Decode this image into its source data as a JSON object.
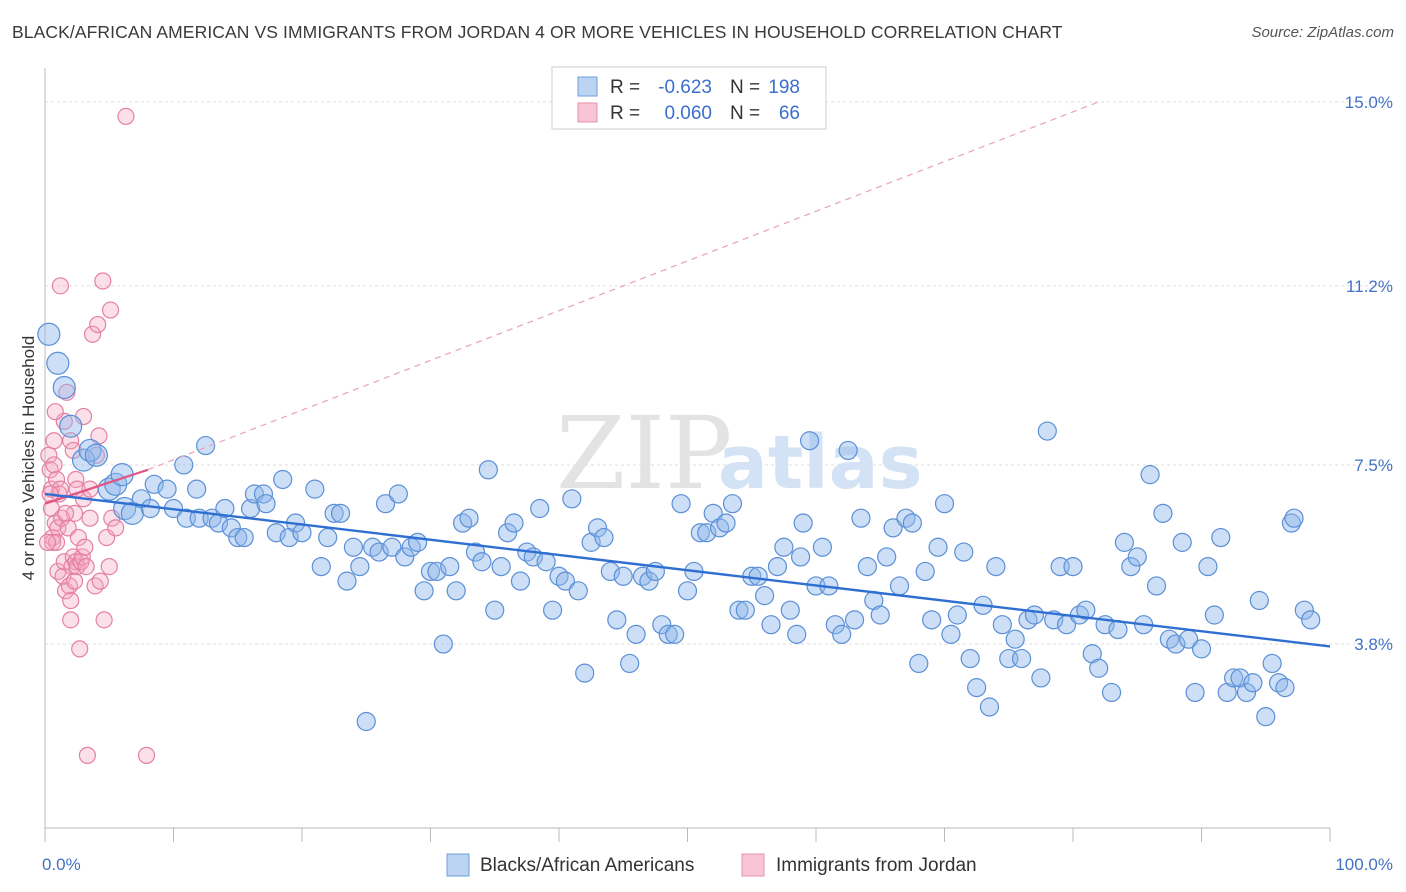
{
  "title": "BLACK/AFRICAN AMERICAN VS IMMIGRANTS FROM JORDAN 4 OR MORE VEHICLES IN HOUSEHOLD CORRELATION CHART",
  "source": "Source: ZipAtlas.com",
  "watermark": {
    "zip": "ZIP",
    "atlas": "atlas"
  },
  "legend": {
    "r_label": "R =",
    "n_label": "N =",
    "rows": [
      {
        "r": "-0.623",
        "n": "198",
        "color": "#8fb8ea"
      },
      {
        "r": "0.060",
        "n": "66",
        "color": "#f4a6c0"
      }
    ]
  },
  "bottom_legend": [
    "Blacks/African Americans",
    "Immigrants from Jordan"
  ],
  "chart_data": {
    "type": "scatter",
    "title": "BLACK/AFRICAN AMERICAN VS IMMIGRANTS FROM JORDAN 4 OR MORE VEHICLES IN HOUSEHOLD CORRELATION CHART",
    "xlabel": "",
    "ylabel": "4 or more Vehicles in Household",
    "xlim": [
      0,
      100
    ],
    "ylim": [
      0,
      15.7
    ],
    "x_tick_labels": [
      "0.0%",
      "100.0%"
    ],
    "y_ticks": [
      3.8,
      7.5,
      11.2,
      15.0
    ],
    "y_tick_labels": [
      "3.8%",
      "7.5%",
      "11.2%",
      "15.0%"
    ],
    "series": [
      {
        "name": "Blacks/African Americans",
        "color": "#8fb8ea",
        "stroke": "#5b8fd6",
        "trend": {
          "x": [
            0,
            100
          ],
          "y": [
            6.9,
            3.75
          ],
          "color": "#2f6fd1"
        },
        "points": [
          [
            0.3,
            10.2
          ],
          [
            1,
            9.6
          ],
          [
            1.5,
            9.1
          ],
          [
            2,
            8.3
          ],
          [
            3,
            7.6
          ],
          [
            3.5,
            7.8
          ],
          [
            4,
            7.7
          ],
          [
            5,
            7.0
          ],
          [
            5.5,
            7.1
          ],
          [
            6,
            7.3
          ],
          [
            6.2,
            6.6
          ],
          [
            6.8,
            6.5
          ],
          [
            7.5,
            6.8
          ],
          [
            8.2,
            6.6
          ],
          [
            8.5,
            7.1
          ],
          [
            9.5,
            7.0
          ],
          [
            10,
            6.6
          ],
          [
            10.8,
            7.5
          ],
          [
            11,
            6.4
          ],
          [
            11.8,
            7.0
          ],
          [
            12,
            6.4
          ],
          [
            12.5,
            7.9
          ],
          [
            13,
            6.4
          ],
          [
            13.5,
            6.3
          ],
          [
            14,
            6.6
          ],
          [
            14.5,
            6.2
          ],
          [
            15,
            6.0
          ],
          [
            15.5,
            6.0
          ],
          [
            16,
            6.6
          ],
          [
            16.3,
            6.9
          ],
          [
            17,
            6.9
          ],
          [
            17.2,
            6.7
          ],
          [
            18,
            6.1
          ],
          [
            18.5,
            7.2
          ],
          [
            19,
            6.0
          ],
          [
            19.5,
            6.3
          ],
          [
            20,
            6.1
          ],
          [
            21,
            7.0
          ],
          [
            21.5,
            5.4
          ],
          [
            22,
            6.0
          ],
          [
            22.5,
            6.5
          ],
          [
            23,
            6.5
          ],
          [
            23.5,
            5.1
          ],
          [
            24,
            5.8
          ],
          [
            24.5,
            5.4
          ],
          [
            25,
            2.2
          ],
          [
            25.5,
            5.8
          ],
          [
            26,
            5.7
          ],
          [
            26.5,
            6.7
          ],
          [
            27,
            5.8
          ],
          [
            27.5,
            6.9
          ],
          [
            28,
            5.6
          ],
          [
            28.5,
            5.8
          ],
          [
            29,
            5.9
          ],
          [
            29.5,
            4.9
          ],
          [
            30,
            5.3
          ],
          [
            30.5,
            5.3
          ],
          [
            31,
            3.8
          ],
          [
            31.5,
            5.4
          ],
          [
            32,
            4.9
          ],
          [
            32.5,
            6.3
          ],
          [
            33,
            6.4
          ],
          [
            33.5,
            5.7
          ],
          [
            34,
            5.5
          ],
          [
            34.5,
            7.4
          ],
          [
            35,
            4.5
          ],
          [
            35.5,
            5.4
          ],
          [
            36,
            6.1
          ],
          [
            36.5,
            6.3
          ],
          [
            37,
            5.1
          ],
          [
            37.5,
            5.7
          ],
          [
            38,
            5.6
          ],
          [
            38.5,
            6.6
          ],
          [
            39,
            5.5
          ],
          [
            39.5,
            4.5
          ],
          [
            40,
            5.2
          ],
          [
            40.5,
            5.1
          ],
          [
            41,
            6.8
          ],
          [
            41.5,
            4.9
          ],
          [
            42,
            3.2
          ],
          [
            42.5,
            5.9
          ],
          [
            43,
            6.2
          ],
          [
            43.5,
            6.0
          ],
          [
            44,
            5.3
          ],
          [
            44.5,
            4.3
          ],
          [
            45,
            5.2
          ],
          [
            45.5,
            3.4
          ],
          [
            46,
            4.0
          ],
          [
            46.5,
            5.2
          ],
          [
            47,
            5.1
          ],
          [
            47.5,
            5.3
          ],
          [
            48,
            4.2
          ],
          [
            48.5,
            4.0
          ],
          [
            49,
            4.0
          ],
          [
            49.5,
            6.7
          ],
          [
            50,
            4.9
          ],
          [
            50.5,
            5.3
          ],
          [
            51,
            6.1
          ],
          [
            51.5,
            6.1
          ],
          [
            52,
            6.5
          ],
          [
            52.5,
            6.2
          ],
          [
            53,
            6.3
          ],
          [
            53.5,
            6.7
          ],
          [
            54,
            4.5
          ],
          [
            54.5,
            4.5
          ],
          [
            55,
            5.2
          ],
          [
            55.5,
            5.2
          ],
          [
            56,
            4.8
          ],
          [
            56.5,
            4.2
          ],
          [
            57,
            5.4
          ],
          [
            57.5,
            5.8
          ],
          [
            58,
            4.5
          ],
          [
            58.5,
            4.0
          ],
          [
            58.8,
            5.6
          ],
          [
            59,
            6.3
          ],
          [
            59.5,
            8.0
          ],
          [
            60,
            5.0
          ],
          [
            60.5,
            5.8
          ],
          [
            61,
            5.0
          ],
          [
            61.5,
            4.2
          ],
          [
            62,
            4.0
          ],
          [
            62.5,
            7.8
          ],
          [
            63,
            4.3
          ],
          [
            63.5,
            6.4
          ],
          [
            64,
            5.4
          ],
          [
            64.5,
            4.7
          ],
          [
            65,
            4.4
          ],
          [
            65.5,
            5.6
          ],
          [
            66,
            6.2
          ],
          [
            66.5,
            5.0
          ],
          [
            67,
            6.4
          ],
          [
            67.5,
            6.3
          ],
          [
            68,
            3.4
          ],
          [
            68.5,
            5.3
          ],
          [
            69,
            4.3
          ],
          [
            69.5,
            5.8
          ],
          [
            70,
            6.7
          ],
          [
            70.5,
            4.0
          ],
          [
            71,
            4.4
          ],
          [
            71.5,
            5.7
          ],
          [
            72,
            3.5
          ],
          [
            72.5,
            2.9
          ],
          [
            73,
            4.6
          ],
          [
            73.5,
            2.5
          ],
          [
            74,
            5.4
          ],
          [
            74.5,
            4.2
          ],
          [
            75,
            3.5
          ],
          [
            75.5,
            3.9
          ],
          [
            76,
            3.5
          ],
          [
            76.5,
            4.3
          ],
          [
            77,
            4.4
          ],
          [
            77.5,
            3.1
          ],
          [
            78,
            8.2
          ],
          [
            78.5,
            4.3
          ],
          [
            79,
            5.4
          ],
          [
            79.5,
            4.2
          ],
          [
            80,
            5.4
          ],
          [
            80.5,
            4.4
          ],
          [
            81,
            4.5
          ],
          [
            81.5,
            3.6
          ],
          [
            82,
            3.3
          ],
          [
            82.5,
            4.2
          ],
          [
            83,
            2.8
          ],
          [
            83.5,
            4.1
          ],
          [
            84,
            5.9
          ],
          [
            84.5,
            5.4
          ],
          [
            85,
            5.6
          ],
          [
            85.5,
            4.2
          ],
          [
            86,
            7.3
          ],
          [
            86.5,
            5.0
          ],
          [
            87,
            6.5
          ],
          [
            87.5,
            3.9
          ],
          [
            88,
            3.8
          ],
          [
            88.5,
            5.9
          ],
          [
            89,
            3.9
          ],
          [
            89.5,
            2.8
          ],
          [
            90,
            3.7
          ],
          [
            90.5,
            5.4
          ],
          [
            91,
            4.4
          ],
          [
            91.5,
            6.0
          ],
          [
            92,
            2.8
          ],
          [
            92.5,
            3.1
          ],
          [
            93,
            3.1
          ],
          [
            93.5,
            2.8
          ],
          [
            94,
            3.0
          ],
          [
            94.5,
            4.7
          ],
          [
            95,
            2.3
          ],
          [
            95.5,
            3.4
          ],
          [
            96,
            3.0
          ],
          [
            96.5,
            2.9
          ],
          [
            97,
            6.3
          ],
          [
            97.2,
            6.4
          ],
          [
            98,
            4.5
          ],
          [
            98.5,
            4.3
          ]
        ]
      },
      {
        "name": "Immigrants from Jordan",
        "color": "#f4a6c0",
        "stroke": "#e57fa4",
        "trend": {
          "x": [
            0,
            8
          ],
          "y": [
            6.7,
            7.4
          ],
          "color": "#e05585"
        },
        "trend_ext": {
          "x": [
            8,
            82
          ],
          "y": [
            7.4,
            15.0
          ],
          "color": "#e8a0b8"
        },
        "points": [
          [
            0.3,
            7.7
          ],
          [
            0.4,
            7.4
          ],
          [
            0.5,
            7.0
          ],
          [
            0.5,
            6.6
          ],
          [
            0.6,
            6.0
          ],
          [
            0.6,
            5.9
          ],
          [
            0.7,
            8.0
          ],
          [
            0.7,
            7.5
          ],
          [
            0.8,
            6.3
          ],
          [
            0.9,
            7.2
          ],
          [
            1,
            5.3
          ],
          [
            1,
            6.2
          ],
          [
            1.1,
            6.9
          ],
          [
            1.2,
            11.2
          ],
          [
            1.2,
            7.0
          ],
          [
            1.3,
            6.4
          ],
          [
            1.4,
            5.2
          ],
          [
            1.5,
            8.4
          ],
          [
            1.5,
            5.5
          ],
          [
            1.6,
            4.9
          ],
          [
            1.7,
            9.0
          ],
          [
            1.8,
            6.2
          ],
          [
            1.9,
            5.0
          ],
          [
            2,
            4.7
          ],
          [
            2,
            8.0
          ],
          [
            2,
            4.3
          ],
          [
            2.1,
            5.4
          ],
          [
            2.2,
            5.6
          ],
          [
            2.3,
            5.1
          ],
          [
            2.3,
            6.5
          ],
          [
            2.4,
            7.2
          ],
          [
            2.4,
            5.5
          ],
          [
            2.5,
            7.0
          ],
          [
            2.5,
            5.4
          ],
          [
            2.6,
            6.0
          ],
          [
            2.7,
            3.7
          ],
          [
            2.8,
            5.5
          ],
          [
            2.9,
            5.6
          ],
          [
            3,
            8.5
          ],
          [
            3,
            6.8
          ],
          [
            3.2,
            5.4
          ],
          [
            3.3,
            1.5
          ],
          [
            3.5,
            6.4
          ],
          [
            3.5,
            7.0
          ],
          [
            3.7,
            10.2
          ],
          [
            3.9,
            5.0
          ],
          [
            4,
            7.7
          ],
          [
            4.1,
            10.4
          ],
          [
            4.2,
            8.1
          ],
          [
            4.3,
            5.1
          ],
          [
            4.5,
            11.3
          ],
          [
            4.6,
            4.3
          ],
          [
            4.8,
            6.0
          ],
          [
            5,
            5.4
          ],
          [
            5.1,
            10.7
          ],
          [
            5.2,
            6.4
          ],
          [
            5.5,
            6.2
          ],
          [
            6.3,
            14.7
          ],
          [
            7.9,
            1.5
          ],
          [
            0.4,
            6.9
          ],
          [
            0.9,
            5.9
          ],
          [
            1.6,
            6.5
          ],
          [
            2.2,
            7.8
          ],
          [
            3.1,
            5.8
          ],
          [
            0.2,
            5.9
          ],
          [
            0.8,
            8.6
          ]
        ]
      }
    ]
  }
}
